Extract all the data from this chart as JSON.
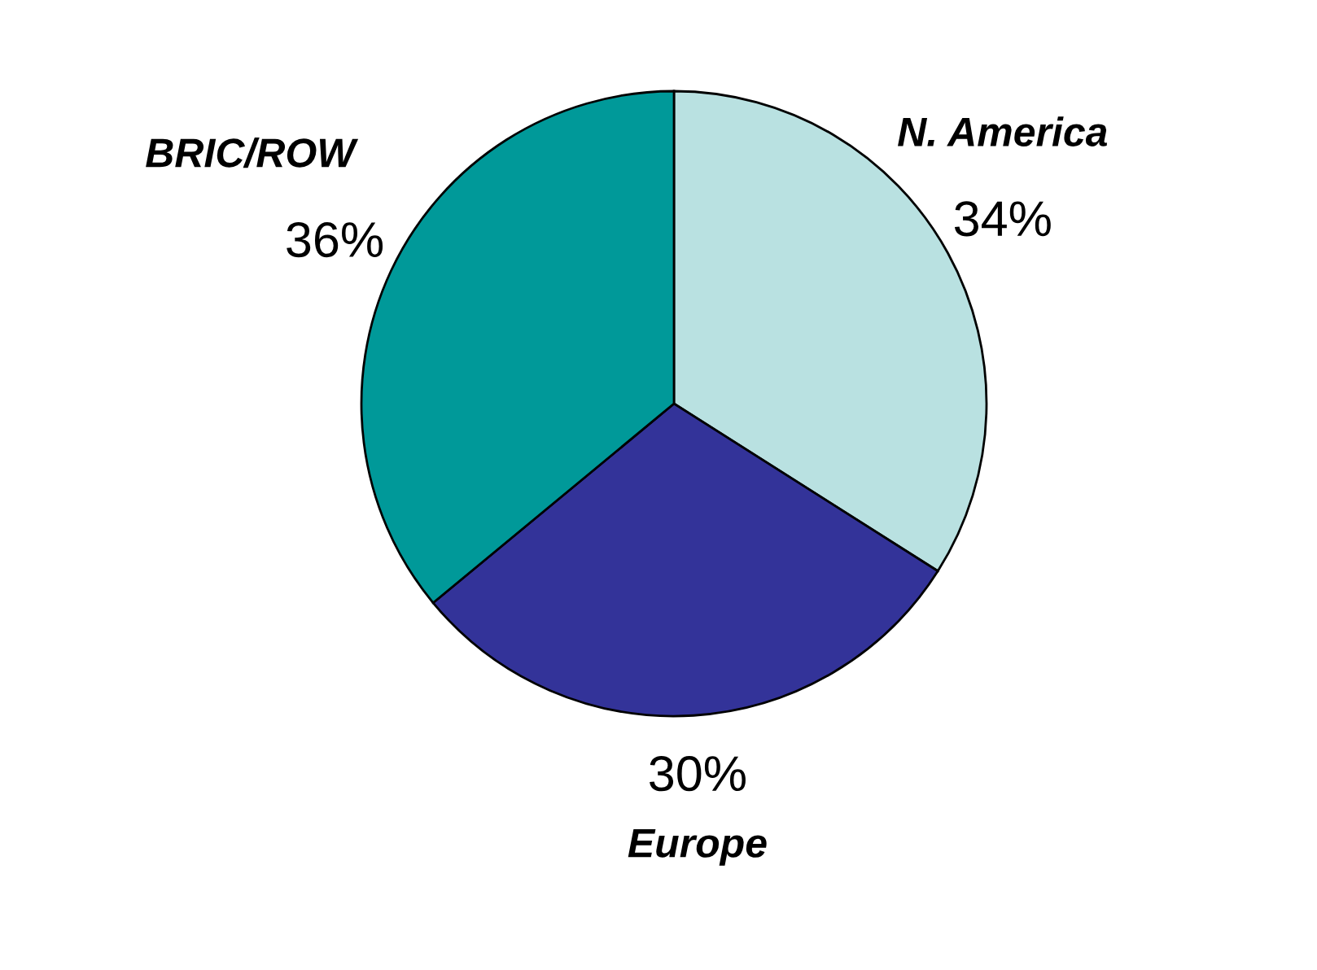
{
  "chart_data": {
    "type": "pie",
    "categories": [
      "N. America",
      "Europe",
      "BRIC/ROW"
    ],
    "values": [
      34,
      30,
      36
    ],
    "value_labels": [
      "34%",
      "30%",
      "36%"
    ],
    "colors": [
      "#b9e1e1",
      "#333399",
      "#009999"
    ]
  }
}
